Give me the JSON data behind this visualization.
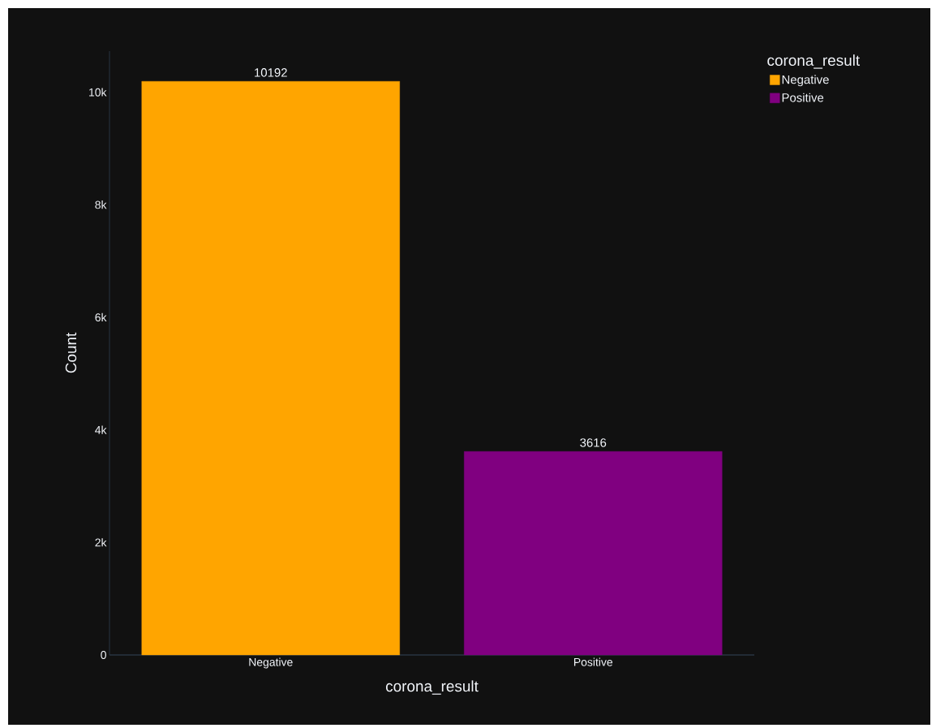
{
  "chart_data": {
    "type": "bar",
    "xlabel": "corona_result",
    "ylabel": "Count",
    "legend_title": "corona_result",
    "categories": [
      "Negative",
      "Positive"
    ],
    "series": [
      {
        "name": "Negative",
        "color": "#ffa500",
        "values": [
          10192,
          null
        ]
      },
      {
        "name": "Positive",
        "color": "#800080",
        "values": [
          null,
          3616
        ]
      }
    ],
    "ylim": [
      0,
      10729
    ],
    "yticks": [
      0,
      {
        "value": 2000,
        "label": "2k"
      },
      {
        "value": 4000,
        "label": "4k"
      },
      {
        "value": 6000,
        "label": "6k"
      },
      {
        "value": 8000,
        "label": "8k"
      },
      {
        "value": 10000,
        "label": "10k"
      }
    ],
    "data_labels": true,
    "grid": false,
    "legend": "top right"
  }
}
